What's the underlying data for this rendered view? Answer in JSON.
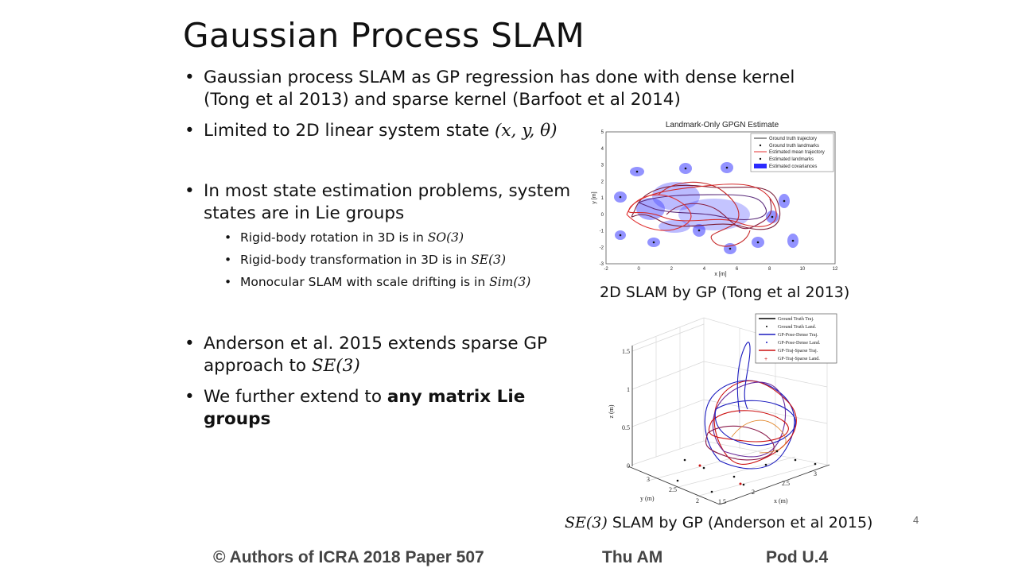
{
  "slide": {
    "title": "Gaussian Process SLAM",
    "page_number": "4"
  },
  "bullets": {
    "b1_line1": "Gaussian process SLAM as GP regression has done with dense kernel",
    "b1_line2": "(Tong et al 2013) and sparse kernel (Barfoot et al 2014)",
    "b2_text": "Limited to 2D linear system state ",
    "b2_math": "(x, y, θ)",
    "b3_line1": "In most state estimation problems, system",
    "b3_line2": "states are in Lie groups",
    "sub1_text": "Rigid-body rotation in 3D is in ",
    "sub1_math": "SO(3)",
    "sub2_text": "Rigid-body transformation in 3D is in ",
    "sub2_math": "SE(3)",
    "sub3_text": "Monocular SLAM with scale drifting is in ",
    "sub3_math": "Sim(3)",
    "b4_line1": "Anderson et al. 2015 extends sparse GP",
    "b4_line2_text": "approach to ",
    "b4_line2_math": "SE(3)",
    "b5_text": "We further extend to ",
    "b5_bold": "any matrix Lie groups"
  },
  "figure1": {
    "title": "Landmark-Only GPGN Estimate",
    "xlabel": "x [m]",
    "ylabel": "y [m]",
    "xticks": [
      "-2",
      "0",
      "2",
      "4",
      "6",
      "8",
      "10",
      "12"
    ],
    "yticks": [
      "5",
      "4",
      "3",
      "2",
      "1",
      "0",
      "-1",
      "-2",
      "-3"
    ],
    "legend": [
      "Ground truth trajectory",
      "Ground truth landmarks",
      "Estimated mean trajectory",
      "Estimated landmarks",
      "Estimated covariances"
    ],
    "caption": "2D SLAM by GP (Tong et al 2013)",
    "colors": {
      "truth": "#333333",
      "estimate": "#e53030",
      "covariance": "#2b2bff"
    }
  },
  "figure2": {
    "zlabel": "z (m)",
    "ylabel": "y (m)",
    "xlabel": "x (m)",
    "zticks": [
      "1.5",
      "1",
      "0.5",
      "0"
    ],
    "yticks": [
      "3",
      "2.5",
      "2"
    ],
    "xticks": [
      "1.5",
      "2",
      "2.5",
      "3"
    ],
    "legend": [
      "Ground Truth Traj.",
      "Ground Truth Land.",
      "GP-Pose-Dense Traj.",
      "GP-Pose-Dense Land.",
      "GP-Traj-Sparse Traj.",
      "GP-Traj-Sparse Land."
    ],
    "caption_math": "SE(3)",
    "caption_text": " SLAM by GP (Anderson et al 2015)",
    "colors": {
      "truth": "#000000",
      "dense": "#1b1bbf",
      "sparse": "#cc1111"
    }
  },
  "footer": {
    "authors": "© Authors of ICRA 2018 Paper 507",
    "session": "Thu AM",
    "pod": "Pod U.4"
  }
}
